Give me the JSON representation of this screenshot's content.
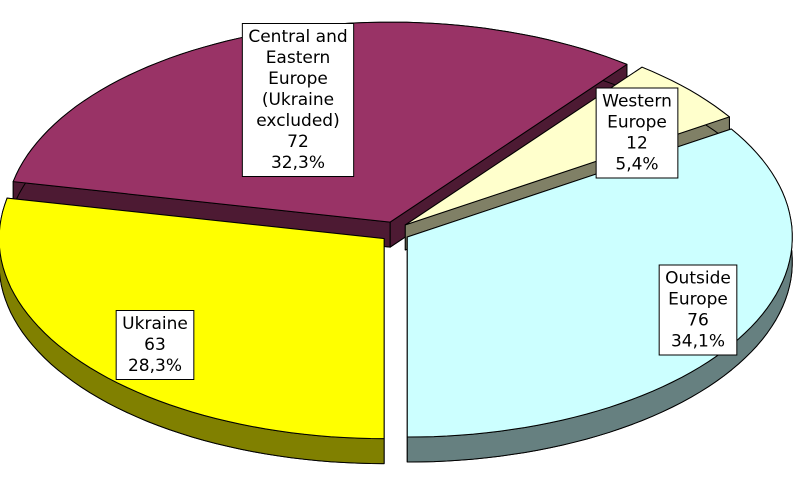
{
  "chart_data": {
    "type": "pie3d",
    "categories": [
      [
        "Ukraine"
      ],
      [
        "Central and",
        "Eastern",
        "Europe",
        "(Ukraine",
        "excluded)"
      ],
      [
        "Western",
        "Europe"
      ],
      [
        "Outside",
        "Europe"
      ]
    ],
    "values": [
      63,
      72,
      12,
      76
    ],
    "percent_labels": [
      "28,3%",
      "32,3%",
      "5,4%",
      "34,1%"
    ],
    "colors": [
      "#ffff00",
      "#993366",
      "#ffffcc",
      "#ccffff"
    ],
    "side_colors": [
      "#808000",
      "#4d1a33",
      "#808066",
      "#668080"
    ]
  }
}
